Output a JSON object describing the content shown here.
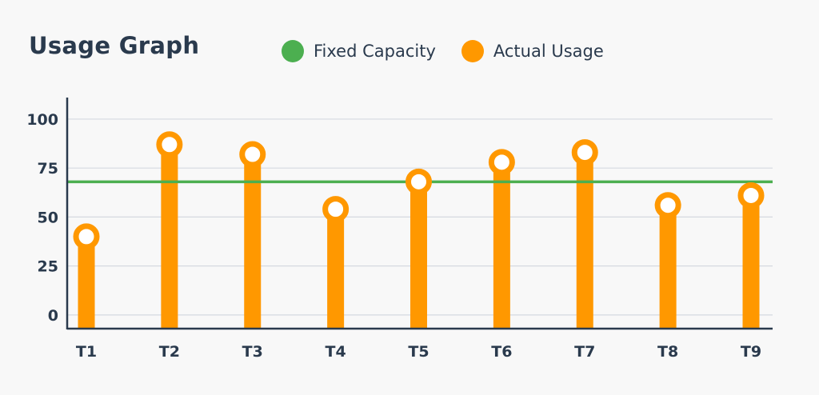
{
  "colors": {
    "capacity": "#4caf50",
    "usage": "#ff9800",
    "axis": "#2a3a4d",
    "grid": "#d5d9e0",
    "marker_fill": "#ffffff"
  },
  "chart_data": {
    "type": "bar",
    "title": "Usage Graph",
    "xlabel": "",
    "ylabel": "",
    "categories": [
      "T1",
      "T2",
      "T3",
      "T4",
      "T5",
      "T6",
      "T7",
      "T8",
      "T9"
    ],
    "series": [
      {
        "name": "Actual Usage",
        "values": [
          40,
          87,
          82,
          54,
          68,
          78,
          83,
          56,
          61
        ]
      }
    ],
    "reference_line": {
      "name": "Fixed Capacity",
      "value": 68
    },
    "ylim": [
      -7,
      111
    ],
    "yticks": [
      0,
      25,
      50,
      75,
      100
    ],
    "grid": true,
    "legend_position": "top",
    "legend": [
      {
        "label": "Fixed Capacity",
        "color": "#4caf50"
      },
      {
        "label": "Actual Usage",
        "color": "#ff9800"
      }
    ]
  }
}
